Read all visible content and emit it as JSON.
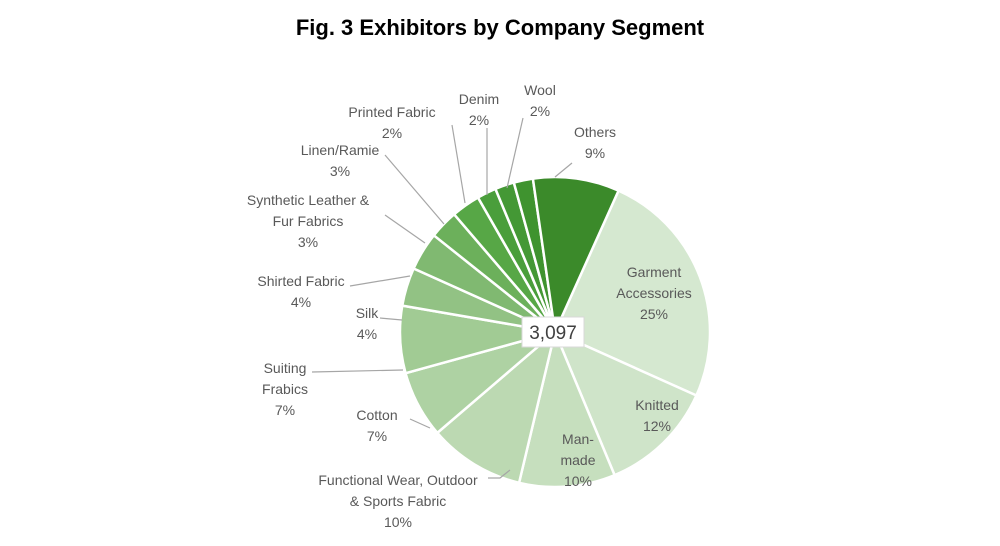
{
  "chart_data": {
    "type": "pie",
    "title": "Fig. 3 Exhibitors by Company Segment",
    "center_label": "3,097",
    "slices": [
      {
        "name": "Garment Accessories",
        "percent_label": "25%",
        "value": 25,
        "color": "#d5e8d0"
      },
      {
        "name": "Knitted",
        "percent_label": "12%",
        "value": 12,
        "color": "#cfe4c9"
      },
      {
        "name": "Man-made",
        "percent_label": "10%",
        "value": 10,
        "color": "#c6dfbe"
      },
      {
        "name": "Functional Wear, Outdoor & Sports Fabric",
        "percent_label": "10%",
        "value": 10,
        "color": "#bcd9b2"
      },
      {
        "name": "Cotton",
        "percent_label": "7%",
        "value": 7,
        "color": "#aed2a3"
      },
      {
        "name": "Suiting Frabics",
        "percent_label": "7%",
        "value": 7,
        "color": "#a1cb94"
      },
      {
        "name": "Silk",
        "percent_label": "4%",
        "value": 4,
        "color": "#92c284"
      },
      {
        "name": "Shirted Fabric",
        "percent_label": "4%",
        "value": 4,
        "color": "#80b971"
      },
      {
        "name": "Synthetic Leather & Fur Fabrics",
        "percent_label": "3%",
        "value": 3,
        "color": "#6cb05b"
      },
      {
        "name": "Linen/Ramie",
        "percent_label": "3%",
        "value": 3,
        "color": "#57a746"
      },
      {
        "name": "Printed Fabric",
        "percent_label": "2%",
        "value": 2,
        "color": "#4a9e3b"
      },
      {
        "name": "Denim",
        "percent_label": "2%",
        "value": 2,
        "color": "#449835"
      },
      {
        "name": "Wool",
        "percent_label": "2%",
        "value": 2,
        "color": "#3f932f"
      },
      {
        "name": "Others",
        "percent_label": "9%",
        "value": 9,
        "color": "#3b8a2a"
      }
    ]
  }
}
